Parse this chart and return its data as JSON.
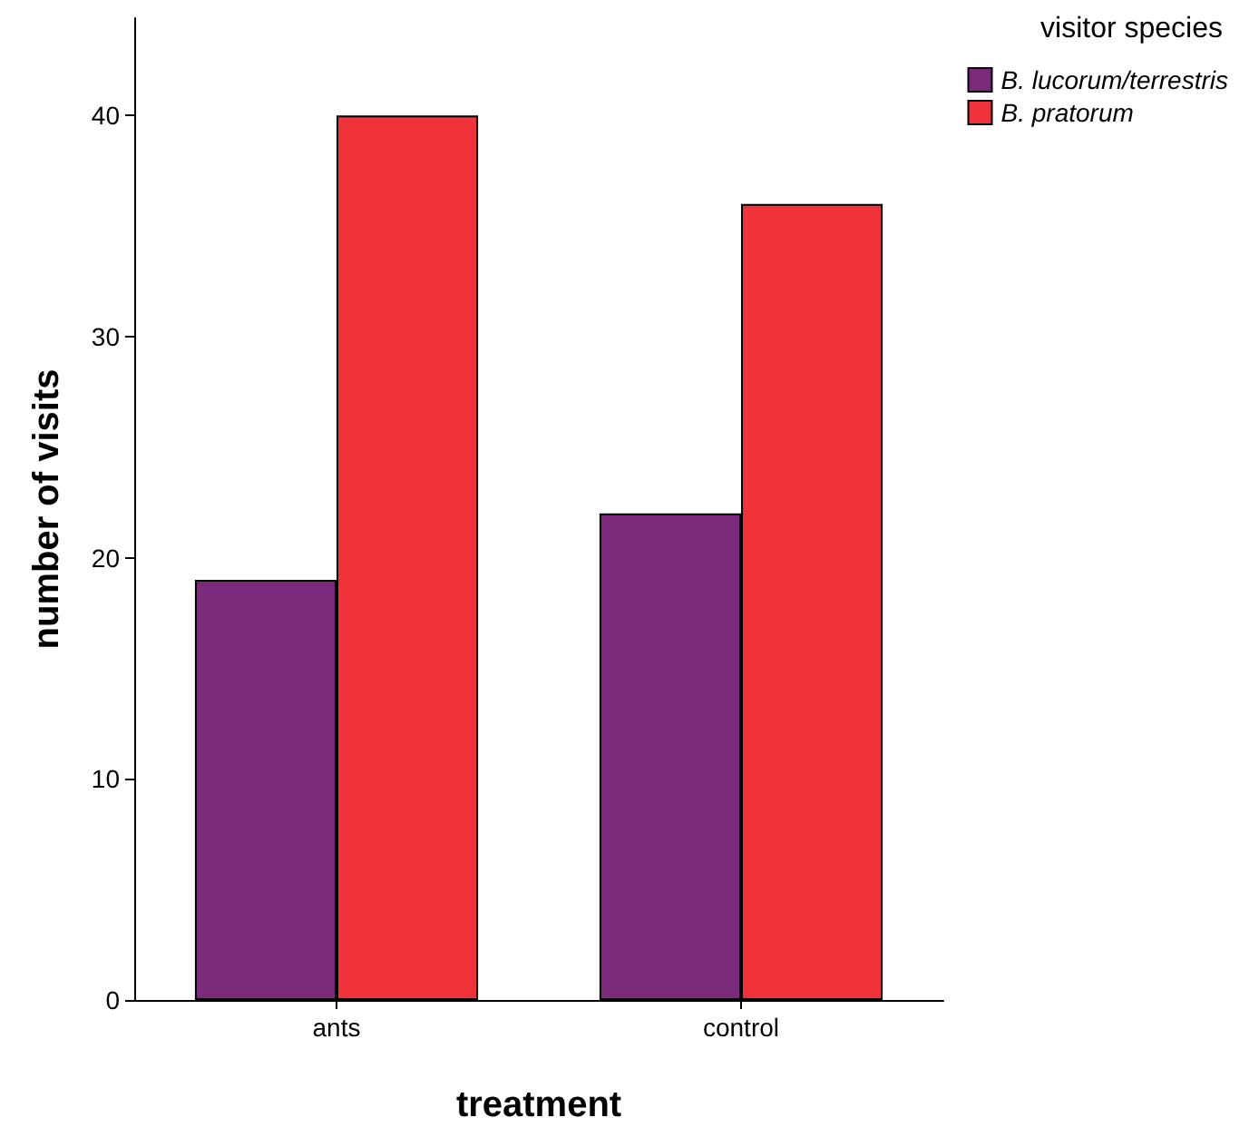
{
  "chart_data": {
    "type": "bar",
    "xlabel": "treatment",
    "ylabel": "number of visits",
    "legend_title": "visitor species",
    "categories": [
      "ants",
      "control"
    ],
    "series": [
      {
        "name": "B. lucorum/terrestris",
        "color": "#7b297b",
        "values": [
          19,
          22
        ]
      },
      {
        "name": "B. pratorum",
        "color": "#f0323a",
        "values": [
          40,
          36
        ]
      }
    ],
    "ylim": [
      0,
      44.4
    ],
    "yticks": [
      0,
      10,
      20,
      30,
      40
    ],
    "grid": false,
    "legend": "top right"
  }
}
